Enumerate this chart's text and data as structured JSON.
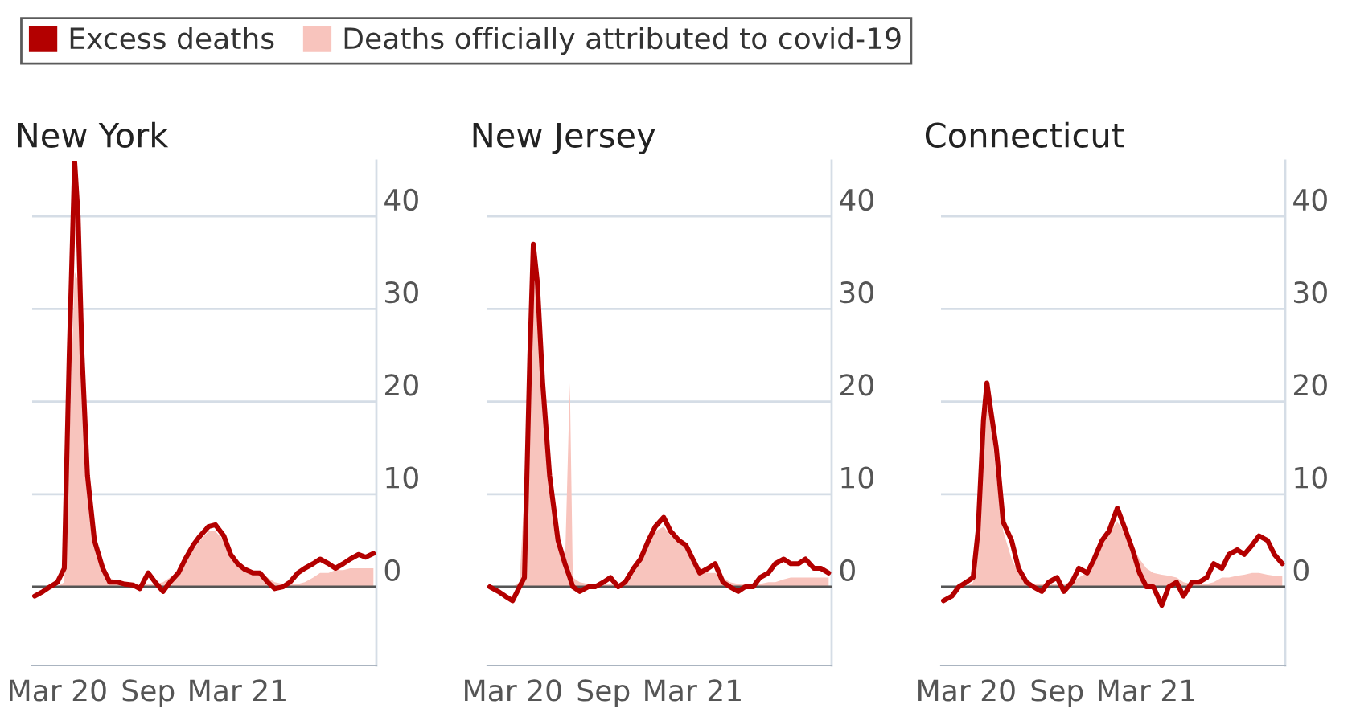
{
  "chart_data": [
    {
      "type": "line",
      "title": "New York",
      "legend": "top",
      "grid": "y",
      "x": [
        "2020-01-15",
        "2020-02-01",
        "2020-02-15",
        "2020-03-01",
        "2020-03-15",
        "2020-03-25",
        "2020-04-05",
        "2020-04-12",
        "2020-04-20",
        "2020-05-01",
        "2020-05-15",
        "2020-06-01",
        "2020-06-15",
        "2020-07-01",
        "2020-07-15",
        "2020-08-01",
        "2020-08-15",
        "2020-09-01",
        "2020-09-15",
        "2020-10-01",
        "2020-10-15",
        "2020-11-01",
        "2020-11-15",
        "2020-12-01",
        "2020-12-15",
        "2021-01-01",
        "2021-01-15",
        "2021-02-01",
        "2021-02-15",
        "2021-03-01",
        "2021-03-15",
        "2021-04-01",
        "2021-04-15",
        "2021-05-01",
        "2021-05-15",
        "2021-06-01",
        "2021-06-15",
        "2021-07-01",
        "2021-07-15",
        "2021-08-01",
        "2021-08-15",
        "2021-09-01",
        "2021-09-15",
        "2021-10-01",
        "2021-10-15",
        "2021-11-01",
        "2021-11-15",
        "2021-12-01"
      ],
      "series": [
        {
          "name": "Excess deaths",
          "color": "#b30000",
          "values": [
            -1,
            -0.5,
            0,
            0.5,
            2,
            25,
            46,
            40,
            25,
            12,
            5,
            2,
            0.5,
            0.5,
            0.3,
            0.2,
            -0.2,
            1.5,
            0.5,
            -0.5,
            0.5,
            1.5,
            3,
            4.5,
            5.5,
            6.5,
            6.7,
            5.5,
            3.5,
            2.5,
            1.9,
            1.5,
            1.5,
            0.5,
            -0.2,
            0,
            0.5,
            1.5,
            2,
            2.5,
            3,
            2.5,
            2,
            2.5,
            3,
            3.5,
            3.2,
            3.6
          ]
        },
        {
          "name": "Deaths officially attributed to covid-19",
          "type": "area",
          "color": "#f8c4bd",
          "values": [
            0,
            0,
            0,
            0,
            0.5,
            15,
            34,
            33,
            22,
            10,
            4.5,
            2,
            1,
            0.5,
            0.3,
            0.3,
            0.3,
            0.3,
            0.3,
            0.5,
            1,
            1.5,
            2.5,
            4,
            5,
            6,
            6,
            5,
            3.5,
            2.5,
            2,
            1.8,
            1.5,
            1,
            0.5,
            0.3,
            0.3,
            0.3,
            0.5,
            1,
            1.5,
            1.5,
            1.8,
            1.8,
            2,
            2,
            2,
            2
          ]
        }
      ],
      "xlim": [
        "2020-01-10",
        "2021-12-07"
      ],
      "xticks": [
        {
          "value": "2020-03-01",
          "label": "Mar 20"
        },
        {
          "value": "2020-09-01",
          "label": "Sep"
        },
        {
          "value": "2021-03-01",
          "label": "Mar 21"
        }
      ],
      "ylim": [
        -8.5,
        46
      ],
      "yticks": [
        0,
        10,
        20,
        30,
        40
      ],
      "ref_lines": [
        {
          "axis": "y",
          "value": 0,
          "color": "#555555"
        }
      ]
    },
    {
      "type": "line",
      "title": "New Jersey",
      "grid": "y",
      "x": [
        "2020-01-15",
        "2020-02-01",
        "2020-02-15",
        "2020-03-01",
        "2020-03-15",
        "2020-03-25",
        "2020-04-05",
        "2020-04-12",
        "2020-04-20",
        "2020-05-01",
        "2020-05-15",
        "2020-06-01",
        "2020-06-15",
        "2020-06-25",
        "2020-07-01",
        "2020-07-15",
        "2020-08-01",
        "2020-08-15",
        "2020-09-01",
        "2020-09-15",
        "2020-10-01",
        "2020-10-15",
        "2020-11-01",
        "2020-11-15",
        "2020-12-01",
        "2020-12-15",
        "2021-01-01",
        "2021-01-15",
        "2021-02-01",
        "2021-02-15",
        "2021-03-01",
        "2021-03-15",
        "2021-04-01",
        "2021-04-15",
        "2021-05-01",
        "2021-05-15",
        "2021-06-01",
        "2021-06-15",
        "2021-07-01",
        "2021-07-15",
        "2021-08-01",
        "2021-08-15",
        "2021-09-01",
        "2021-09-15",
        "2021-10-01",
        "2021-10-15",
        "2021-11-01",
        "2021-11-15",
        "2021-12-01"
      ],
      "series": [
        {
          "color": "#b30000",
          "values": [
            0,
            -0.5,
            -1,
            -1.5,
            0,
            1,
            25,
            37,
            33,
            22,
            12,
            5,
            2.5,
            1,
            0,
            -0.5,
            0,
            0,
            0.5,
            1,
            0,
            0.5,
            2,
            3,
            5,
            6.5,
            7.5,
            6,
            5,
            4.5,
            3,
            1.5,
            2,
            2.5,
            0.5,
            0,
            -0.5,
            0,
            0,
            1,
            1.5,
            2.5,
            3,
            2.5,
            2.5,
            3,
            2,
            2,
            1.5
          ]
        },
        {
          "type": "area",
          "color": "#f8c4bd",
          "values": [
            0,
            0,
            0,
            0,
            0.5,
            10,
            30,
            34,
            30,
            20,
            10,
            4.5,
            2,
            22,
            1,
            0.5,
            0.3,
            0.3,
            0.3,
            0.3,
            0.3,
            0.5,
            1.5,
            3,
            4.5,
            6,
            6.5,
            5.5,
            5,
            4,
            3,
            2,
            1.5,
            1.5,
            1,
            0.5,
            0.3,
            0.3,
            0.2,
            0.3,
            0.5,
            0.5,
            0.8,
            1,
            1,
            1,
            1,
            1,
            1
          ]
        }
      ],
      "xlim": [
        "2020-01-10",
        "2021-12-07"
      ],
      "xticks": [
        {
          "value": "2020-03-01",
          "label": "Mar 20"
        },
        {
          "value": "2020-09-01",
          "label": "Sep"
        },
        {
          "value": "2021-03-01",
          "label": "Mar 21"
        }
      ],
      "ylim": [
        -8.5,
        46
      ],
      "yticks": [
        0,
        10,
        20,
        30,
        40
      ],
      "ref_lines": [
        {
          "axis": "y",
          "value": 0,
          "color": "#555555"
        }
      ]
    },
    {
      "type": "line",
      "title": "Connecticut",
      "grid": "y",
      "x": [
        "2020-01-15",
        "2020-02-01",
        "2020-02-15",
        "2020-03-01",
        "2020-03-15",
        "2020-03-25",
        "2020-04-05",
        "2020-04-12",
        "2020-04-20",
        "2020-05-01",
        "2020-05-15",
        "2020-06-01",
        "2020-06-15",
        "2020-07-01",
        "2020-07-15",
        "2020-08-01",
        "2020-08-15",
        "2020-09-01",
        "2020-09-15",
        "2020-10-01",
        "2020-10-15",
        "2020-11-01",
        "2020-11-15",
        "2020-12-01",
        "2020-12-15",
        "2021-01-01",
        "2021-01-15",
        "2021-02-01",
        "2021-02-15",
        "2021-03-01",
        "2021-03-15",
        "2021-04-01",
        "2021-04-15",
        "2021-05-01",
        "2021-05-15",
        "2021-06-01",
        "2021-06-15",
        "2021-07-01",
        "2021-07-15",
        "2021-08-01",
        "2021-08-15",
        "2021-09-01",
        "2021-09-15",
        "2021-10-01",
        "2021-10-15",
        "2021-11-01",
        "2021-11-15",
        "2021-12-01"
      ],
      "series": [
        {
          "color": "#b30000",
          "values": [
            -1.5,
            -1,
            0,
            0.5,
            1,
            6,
            18,
            22,
            19,
            15,
            7,
            5,
            2,
            0.5,
            0,
            -0.5,
            0.5,
            1,
            -0.5,
            0.5,
            2,
            1.5,
            3,
            5,
            6,
            8.5,
            6.5,
            4,
            1.5,
            0,
            0,
            -2,
            0,
            0.5,
            -1,
            0.5,
            0.5,
            1,
            2.5,
            2,
            3.5,
            4,
            3.5,
            4.5,
            5.5,
            5,
            3.5,
            2.5
          ]
        },
        {
          "type": "area",
          "color": "#f8c4bd",
          "values": [
            0,
            0,
            0,
            0,
            0.5,
            5,
            15,
            20,
            18,
            12,
            6,
            3,
            1.5,
            0.5,
            0.3,
            0.3,
            0.3,
            0.3,
            0.3,
            0.5,
            1,
            1.5,
            3,
            5,
            6,
            7,
            6,
            4.5,
            3,
            2,
            1.5,
            1.3,
            1.2,
            1,
            0.5,
            0.3,
            0.3,
            0.3,
            0.5,
            1,
            1,
            1.2,
            1.3,
            1.5,
            1.5,
            1.3,
            1.2,
            1.2
          ]
        }
      ],
      "xlim": [
        "2020-01-10",
        "2021-12-07"
      ],
      "xticks": [
        {
          "value": "2020-03-01",
          "label": "Mar 20"
        },
        {
          "value": "2020-09-01",
          "label": "Sep"
        },
        {
          "value": "2021-03-01",
          "label": "Mar 21"
        }
      ],
      "ylim": [
        -8.5,
        46
      ],
      "yticks": [
        0,
        10,
        20,
        30,
        40
      ],
      "ref_lines": [
        {
          "axis": "y",
          "value": 0,
          "color": "#555555"
        }
      ]
    }
  ]
}
